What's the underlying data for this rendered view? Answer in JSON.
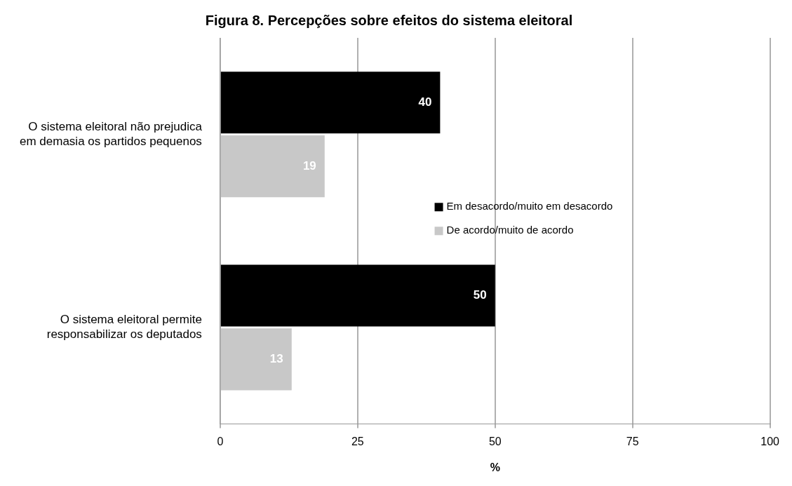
{
  "chart_data": {
    "type": "bar",
    "orientation": "horizontal",
    "title": "Figura 8. Percepções sobre efeitos do sistema eleitoral",
    "xlabel": "%",
    "categories": [
      "O sistema eleitoral não prejudica em demasia os partidos pequenos",
      "O sistema eleitoral permite responsabilizar os deputados"
    ],
    "series": [
      {
        "name": "Em desacordo/muito em desacordo",
        "color": "#000000",
        "values": [
          40,
          50
        ]
      },
      {
        "name": "De acordo/muito de acordo",
        "color": "#c8c8c8",
        "values": [
          19,
          13
        ]
      }
    ],
    "xlim": [
      0,
      100
    ],
    "xticks": [
      0,
      25,
      50,
      75,
      100
    ],
    "grid": "x",
    "legend": "right",
    "data_labels": true
  }
}
